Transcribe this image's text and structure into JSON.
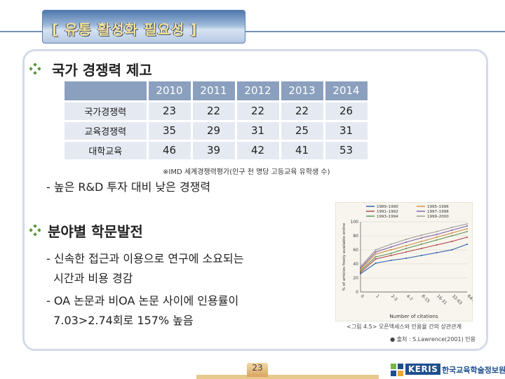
{
  "header": {
    "title": "[ 유통 활성화 필요성 ]"
  },
  "section1": {
    "title": "국가 경쟁력 제고",
    "table": {
      "years": [
        "2010",
        "2011",
        "2012",
        "2013",
        "2014"
      ],
      "rows": [
        {
          "label": "국가경쟁력",
          "values": [
            "23",
            "22",
            "22",
            "22",
            "26"
          ]
        },
        {
          "label": "교육경쟁력",
          "values": [
            "35",
            "29",
            "31",
            "25",
            "31"
          ]
        },
        {
          "label": "대학교육",
          "values": [
            "46",
            "39",
            "42",
            "41",
            "53"
          ]
        }
      ]
    },
    "note": "※IMD 세계경쟁력평가(인구 천 명당 고등교육 유학생 수)",
    "point": "- 높은 R&D 투자 대비 낮은 경쟁력"
  },
  "section2": {
    "title": "분야별 학문발전",
    "lines": [
      "- 신속한 접근과 이용으로 연구에 소요되는",
      "  시간과 비용 경감",
      "- OA 논문과 비OA 논문 사이에 인용률이",
      "  7.03>2.74회로 157% 높음"
    ]
  },
  "chart_data": {
    "type": "line",
    "xlabel": "Number of citations",
    "ylabel": "% of articles freely available online",
    "x": [
      "0",
      "1",
      "2-3",
      "4-7",
      "8-15",
      "16-31",
      "32-63",
      "64-127"
    ],
    "ylim": [
      0,
      100
    ],
    "yticks": [
      "0",
      "20",
      "40",
      "60",
      "80",
      "100"
    ],
    "legend_placement": "top",
    "series": [
      {
        "name": "1989–1990",
        "color": "#2a5ca8",
        "values": [
          26,
          41,
          45,
          48,
          52,
          56,
          60,
          68
        ]
      },
      {
        "name": "1991–1992",
        "color": "#b04040",
        "values": [
          28,
          47,
          52,
          57,
          62,
          67,
          72,
          78
        ]
      },
      {
        "name": "1993–1994",
        "color": "#5a8f4f",
        "values": [
          30,
          50,
          55,
          62,
          68,
          74,
          80,
          86
        ]
      },
      {
        "name": "1995–1996",
        "color": "#d08a3c",
        "values": [
          32,
          54,
          60,
          66,
          72,
          78,
          84,
          90
        ]
      },
      {
        "name": "1997–1998",
        "color": "#7d5aa6",
        "values": [
          34,
          57,
          64,
          71,
          77,
          82,
          88,
          94
        ]
      },
      {
        "name": "1999–2000",
        "color": "#999999",
        "values": [
          36,
          60,
          68,
          75,
          81,
          86,
          92,
          97
        ]
      }
    ],
    "caption": "<그림 4.5> 오픈액세스와 인용율 간의 상관관계",
    "source": "● 출처 : S.Lawrence(2001) 인용"
  },
  "footer": {
    "page_number": "23",
    "logo_text": "KERIS",
    "org_name": "한국교육학술정보원"
  },
  "colors": {
    "bullet": "#5b9b3a",
    "header": "#4f78ad",
    "table_head": "#8aa0be",
    "table_cell": "#e5e9f1"
  }
}
